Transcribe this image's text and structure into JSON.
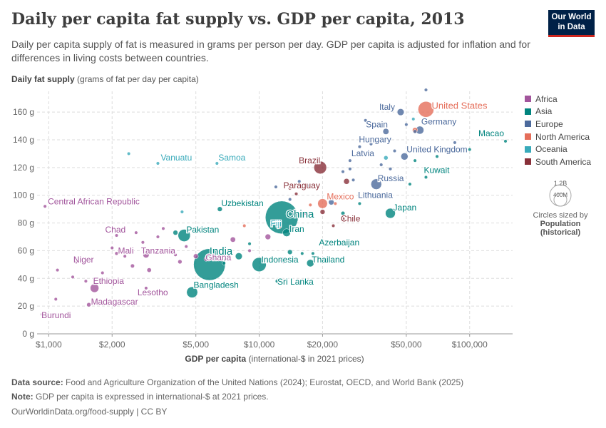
{
  "header": {
    "title": "Daily per capita fat supply vs. GDP per capita, 2013",
    "subtitle": "Daily per capita supply of fat is measured in grams per person per day. GDP per capita is adjusted for inflation and for differences in living costs between countries.",
    "logo_line1": "Our World",
    "logo_line2": "in Data"
  },
  "axes": {
    "y_title": "Daily fat supply",
    "y_unit": "(grams of fat per day per capita)",
    "x_title": "GDP per capita",
    "x_unit": "(international-$ in 2021 prices)"
  },
  "legend": {
    "title": "",
    "items": [
      {
        "label": "Africa",
        "color": "#a2559c"
      },
      {
        "label": "Asia",
        "color": "#00847e"
      },
      {
        "label": "Europe",
        "color": "#4c6a9c"
      },
      {
        "label": "North America",
        "color": "#e56e5a"
      },
      {
        "label": "Oceania",
        "color": "#38aaba"
      },
      {
        "label": "South America",
        "color": "#883039"
      }
    ]
  },
  "size_key": {
    "big_label": "1.2B",
    "small_label": "400M",
    "caption": "Circles sized by",
    "measure_line1": "Population",
    "measure_line2": "(historical)"
  },
  "footer": {
    "source_label": "Data source:",
    "source_text": "Food and Agriculture Organization of the United Nations (2024); Eurostat, OECD, and World Bank (2025)",
    "note_label": "Note:",
    "note_text": "GDP per capita is expressed in international-$ at 2021 prices.",
    "url": "OurWorldinData.org/food-supply | CC BY"
  },
  "chart_data": {
    "type": "scatter",
    "title": "Daily per capita fat supply vs. GDP per capita, 2013",
    "xlabel": "GDP per capita",
    "ylabel": "Daily fat supply",
    "x_scale": "log",
    "xlim": [
      880,
      160000
    ],
    "ylim": [
      0,
      175
    ],
    "x_ticks": [
      {
        "v": 1000,
        "label": "$1,000"
      },
      {
        "v": 2000,
        "label": "$2,000"
      },
      {
        "v": 5000,
        "label": "$5,000"
      },
      {
        "v": 10000,
        "label": "$10,000"
      },
      {
        "v": 20000,
        "label": "$20,000"
      },
      {
        "v": 50000,
        "label": "$50,000"
      },
      {
        "v": 100000,
        "label": "$100,000"
      }
    ],
    "y_ticks": [
      {
        "v": 0,
        "label": "0 g"
      },
      {
        "v": 20,
        "label": "20 g"
      },
      {
        "v": 40,
        "label": "40 g"
      },
      {
        "v": 60,
        "label": "60 g"
      },
      {
        "v": 80,
        "label": "80 g"
      },
      {
        "v": 100,
        "label": "100 g"
      },
      {
        "v": 120,
        "label": "120 g"
      },
      {
        "v": 140,
        "label": "140 g"
      },
      {
        "v": 160,
        "label": "160 g"
      }
    ],
    "grid": true,
    "legend_position": "right",
    "labeled_points": [
      {
        "name": "United States",
        "region": "North America",
        "x": 62000,
        "y": 162,
        "pop_m": 316
      },
      {
        "name": "Italy",
        "region": "Europe",
        "x": 47000,
        "y": 160,
        "pop_m": 60
      },
      {
        "name": "Spain",
        "region": "Europe",
        "x": 40000,
        "y": 146,
        "pop_m": 46
      },
      {
        "name": "Germany",
        "region": "Europe",
        "x": 58000,
        "y": 147,
        "pop_m": 81
      },
      {
        "name": "Macao",
        "region": "Asia",
        "x": 148000,
        "y": 139,
        "pop_m": 0.6
      },
      {
        "name": "Hungary",
        "region": "Europe",
        "x": 30000,
        "y": 135,
        "pop_m": 10
      },
      {
        "name": "Latvia",
        "region": "Europe",
        "x": 27000,
        "y": 125,
        "pop_m": 2
      },
      {
        "name": "United Kingdom",
        "region": "Europe",
        "x": 49000,
        "y": 128,
        "pop_m": 64
      },
      {
        "name": "Brazil",
        "region": "South America",
        "x": 19500,
        "y": 120,
        "pop_m": 203
      },
      {
        "name": "Kuwait",
        "region": "Asia",
        "x": 62000,
        "y": 113,
        "pop_m": 3.6
      },
      {
        "name": "Vanuatu",
        "region": "Oceania",
        "x": 3300,
        "y": 123,
        "pop_m": 0.25
      },
      {
        "name": "Samoa",
        "region": "Oceania",
        "x": 6300,
        "y": 123,
        "pop_m": 0.2
      },
      {
        "name": "Russia",
        "region": "Europe",
        "x": 36000,
        "y": 108,
        "pop_m": 144
      },
      {
        "name": "Paraguay",
        "region": "South America",
        "x": 15000,
        "y": 101,
        "pop_m": 6.4
      },
      {
        "name": "Lithuania",
        "region": "Europe",
        "x": 35000,
        "y": 100,
        "pop_m": 3
      },
      {
        "name": "Mexico",
        "region": "North America",
        "x": 20000,
        "y": 94,
        "pop_m": 120
      },
      {
        "name": "Central African Republic",
        "region": "Africa",
        "x": 960,
        "y": 92,
        "pop_m": 4.7
      },
      {
        "name": "China",
        "region": "Asia",
        "x": 12800,
        "y": 84,
        "pop_m": 1370
      },
      {
        "name": "Uzbekistan",
        "region": "Asia",
        "x": 6500,
        "y": 90,
        "pop_m": 30
      },
      {
        "name": "Japan",
        "region": "Asia",
        "x": 42000,
        "y": 87,
        "pop_m": 127
      },
      {
        "name": "Chile",
        "region": "South America",
        "x": 25000,
        "y": 83,
        "pop_m": 17.6
      },
      {
        "name": "Fiji",
        "region": "Oceania",
        "x": 11500,
        "y": 80,
        "pop_m": 0.87
      },
      {
        "name": "Iran",
        "region": "Asia",
        "x": 13500,
        "y": 73,
        "pop_m": 77
      },
      {
        "name": "Pakistan",
        "region": "Asia",
        "x": 4400,
        "y": 71,
        "pop_m": 190
      },
      {
        "name": "Chad",
        "region": "Africa",
        "x": 2100,
        "y": 71,
        "pop_m": 13
      },
      {
        "name": "Azerbaijan",
        "region": "Asia",
        "x": 20000,
        "y": 67,
        "pop_m": 9.4
      },
      {
        "name": "Mali",
        "region": "Africa",
        "x": 2100,
        "y": 58,
        "pop_m": 16
      },
      {
        "name": "Tanzania",
        "region": "Africa",
        "x": 2900,
        "y": 57,
        "pop_m": 48
      },
      {
        "name": "India",
        "region": "Asia",
        "x": 5800,
        "y": 50,
        "pop_m": 1280
      },
      {
        "name": "Indonesia",
        "region": "Asia",
        "x": 10000,
        "y": 50,
        "pop_m": 252
      },
      {
        "name": "Thailand",
        "region": "Asia",
        "x": 17500,
        "y": 51,
        "pop_m": 68
      },
      {
        "name": "Niger",
        "region": "Africa",
        "x": 1350,
        "y": 52,
        "pop_m": 18
      },
      {
        "name": "Ghana",
        "region": "Africa",
        "x": 5600,
        "y": 54,
        "pop_m": 26
      },
      {
        "name": "Ethiopia",
        "region": "Africa",
        "x": 1650,
        "y": 33,
        "pop_m": 95
      },
      {
        "name": "Lesotho",
        "region": "Africa",
        "x": 2900,
        "y": 33,
        "pop_m": 2
      },
      {
        "name": "Sri Lanka",
        "region": "Asia",
        "x": 12200,
        "y": 38,
        "pop_m": 21
      },
      {
        "name": "Bangladesh",
        "region": "Asia",
        "x": 4800,
        "y": 30,
        "pop_m": 155
      },
      {
        "name": "Madagascar",
        "region": "Africa",
        "x": 1550,
        "y": 21,
        "pop_m": 23
      },
      {
        "name": "Burundi",
        "region": "Africa",
        "x": 930,
        "y": 14,
        "pop_m": 10
      }
    ],
    "unlabeled_points": [
      {
        "region": "Africa",
        "x": 1080,
        "y": 25,
        "pop_m": 12
      },
      {
        "region": "Africa",
        "x": 1100,
        "y": 46,
        "pop_m": 8
      },
      {
        "region": "Africa",
        "x": 1300,
        "y": 41,
        "pop_m": 6
      },
      {
        "region": "Africa",
        "x": 1500,
        "y": 38,
        "pop_m": 5
      },
      {
        "region": "Africa",
        "x": 1800,
        "y": 44,
        "pop_m": 7
      },
      {
        "region": "Africa",
        "x": 2000,
        "y": 62,
        "pop_m": 9
      },
      {
        "region": "Africa",
        "x": 2300,
        "y": 56,
        "pop_m": 10
      },
      {
        "region": "Africa",
        "x": 2500,
        "y": 49,
        "pop_m": 20
      },
      {
        "region": "Africa",
        "x": 2600,
        "y": 73,
        "pop_m": 5
      },
      {
        "region": "Africa",
        "x": 2800,
        "y": 66,
        "pop_m": 6
      },
      {
        "region": "Africa",
        "x": 3000,
        "y": 46,
        "pop_m": 25
      },
      {
        "region": "Africa",
        "x": 3300,
        "y": 70,
        "pop_m": 4
      },
      {
        "region": "Africa",
        "x": 3500,
        "y": 76,
        "pop_m": 3
      },
      {
        "region": "Africa",
        "x": 3600,
        "y": 60,
        "pop_m": 14
      },
      {
        "region": "Africa",
        "x": 4000,
        "y": 57,
        "pop_m": 11
      },
      {
        "region": "Africa",
        "x": 4200,
        "y": 52,
        "pop_m": 22
      },
      {
        "region": "Africa",
        "x": 4500,
        "y": 63,
        "pop_m": 8
      },
      {
        "region": "Africa",
        "x": 5000,
        "y": 56,
        "pop_m": 30
      },
      {
        "region": "Africa",
        "x": 7500,
        "y": 68,
        "pop_m": 35
      },
      {
        "region": "Africa",
        "x": 9000,
        "y": 60,
        "pop_m": 6
      },
      {
        "region": "Africa",
        "x": 11000,
        "y": 70,
        "pop_m": 40
      },
      {
        "region": "Africa",
        "x": 13000,
        "y": 53,
        "pop_m": 50
      },
      {
        "region": "Africa",
        "x": 14500,
        "y": 88,
        "pop_m": 10
      },
      {
        "region": "Africa",
        "x": 16500,
        "y": 87,
        "pop_m": 2
      },
      {
        "region": "Asia",
        "x": 4000,
        "y": 73,
        "pop_m": 30
      },
      {
        "region": "Asia",
        "x": 6800,
        "y": 51,
        "pop_m": 15
      },
      {
        "region": "Asia",
        "x": 8000,
        "y": 56,
        "pop_m": 60
      },
      {
        "region": "Asia",
        "x": 9000,
        "y": 65,
        "pop_m": 6
      },
      {
        "region": "Asia",
        "x": 14000,
        "y": 59,
        "pop_m": 30
      },
      {
        "region": "Asia",
        "x": 16000,
        "y": 58,
        "pop_m": 10
      },
      {
        "region": "Asia",
        "x": 18000,
        "y": 58,
        "pop_m": 5
      },
      {
        "region": "Asia",
        "x": 25000,
        "y": 87,
        "pop_m": 20
      },
      {
        "region": "Asia",
        "x": 30000,
        "y": 94,
        "pop_m": 3
      },
      {
        "region": "Asia",
        "x": 52000,
        "y": 108,
        "pop_m": 8
      },
      {
        "region": "Asia",
        "x": 100000,
        "y": 133,
        "pop_m": 5
      },
      {
        "region": "Asia",
        "x": 55000,
        "y": 125,
        "pop_m": 4
      },
      {
        "region": "Asia",
        "x": 70000,
        "y": 128,
        "pop_m": 2
      },
      {
        "region": "Europe",
        "x": 12000,
        "y": 106,
        "pop_m": 7
      },
      {
        "region": "Europe",
        "x": 14000,
        "y": 97,
        "pop_m": 10
      },
      {
        "region": "Europe",
        "x": 15500,
        "y": 110,
        "pop_m": 3
      },
      {
        "region": "Europe",
        "x": 17000,
        "y": 107,
        "pop_m": 4
      },
      {
        "region": "Europe",
        "x": 22000,
        "y": 95,
        "pop_m": 38
      },
      {
        "region": "Europe",
        "x": 25000,
        "y": 117,
        "pop_m": 10
      },
      {
        "region": "Europe",
        "x": 27000,
        "y": 119,
        "pop_m": 5
      },
      {
        "region": "Europe",
        "x": 28000,
        "y": 111,
        "pop_m": 2
      },
      {
        "region": "Europe",
        "x": 32000,
        "y": 154,
        "pop_m": 2
      },
      {
        "region": "Europe",
        "x": 34000,
        "y": 137,
        "pop_m": 4
      },
      {
        "region": "Europe",
        "x": 38000,
        "y": 122,
        "pop_m": 10
      },
      {
        "region": "Europe",
        "x": 42000,
        "y": 119,
        "pop_m": 5
      },
      {
        "region": "Europe",
        "x": 44000,
        "y": 132,
        "pop_m": 11
      },
      {
        "region": "Europe",
        "x": 50000,
        "y": 151,
        "pop_m": 9
      },
      {
        "region": "Europe",
        "x": 55000,
        "y": 146,
        "pop_m": 17
      },
      {
        "region": "Europe",
        "x": 62000,
        "y": 176,
        "pop_m": 5
      },
      {
        "region": "Europe",
        "x": 85000,
        "y": 138,
        "pop_m": 0.5
      },
      {
        "region": "North America",
        "x": 8500,
        "y": 78,
        "pop_m": 5
      },
      {
        "region": "North America",
        "x": 12500,
        "y": 77,
        "pop_m": 10
      },
      {
        "region": "North America",
        "x": 17500,
        "y": 93,
        "pop_m": 4
      },
      {
        "region": "North America",
        "x": 23000,
        "y": 94,
        "pop_m": 3
      },
      {
        "region": "North America",
        "x": 55000,
        "y": 147,
        "pop_m": 35
      },
      {
        "region": "Oceania",
        "x": 2400,
        "y": 130,
        "pop_m": 0.2
      },
      {
        "region": "Oceania",
        "x": 4300,
        "y": 88,
        "pop_m": 0.5
      },
      {
        "region": "Oceania",
        "x": 40000,
        "y": 127,
        "pop_m": 23
      },
      {
        "region": "Oceania",
        "x": 54000,
        "y": 155,
        "pop_m": 4.5
      },
      {
        "region": "South America",
        "x": 14000,
        "y": 105,
        "pop_m": 3.4
      },
      {
        "region": "South America",
        "x": 20000,
        "y": 88,
        "pop_m": 31
      },
      {
        "region": "South America",
        "x": 22500,
        "y": 78,
        "pop_m": 10
      },
      {
        "region": "South America",
        "x": 26000,
        "y": 110,
        "pop_m": 42
      },
      {
        "region": "South America",
        "x": 32000,
        "y": 100,
        "pop_m": 30
      }
    ]
  }
}
